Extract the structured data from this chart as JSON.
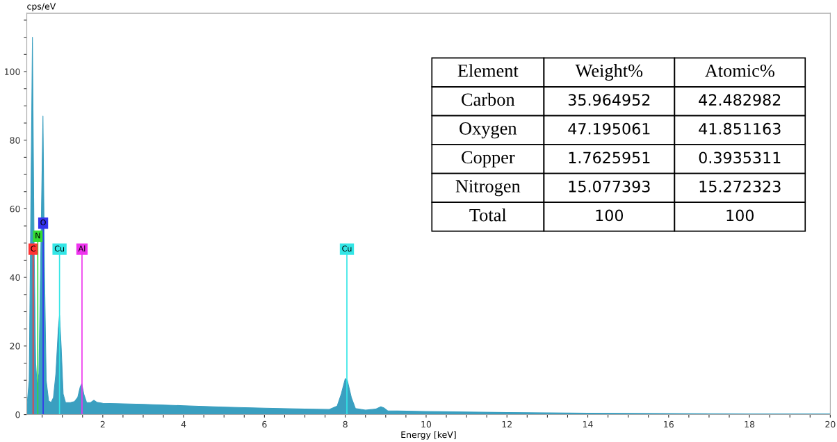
{
  "chart_data": [
    {
      "type": "area",
      "ylabel": "cps/eV",
      "xlabel": "Energy [keV]",
      "color": "#3a9fc0",
      "x": [
        0.12,
        0.18,
        0.22,
        0.26,
        0.3,
        0.34,
        0.38,
        0.42,
        0.47,
        0.52,
        0.56,
        0.6,
        0.66,
        0.72,
        0.78,
        0.84,
        0.9,
        0.93,
        0.97,
        1.02,
        1.08,
        1.2,
        1.3,
        1.38,
        1.44,
        1.48,
        1.53,
        1.6,
        1.7,
        1.78,
        1.85,
        2.0,
        3.0,
        4.0,
        5.0,
        6.0,
        7.0,
        7.6,
        7.8,
        7.9,
        8.0,
        8.05,
        8.15,
        8.25,
        8.5,
        8.75,
        8.88,
        8.95,
        9.05,
        10,
        12,
        14,
        16,
        18,
        20
      ],
      "values": [
        2,
        10,
        60,
        110,
        50,
        15,
        8,
        12,
        50,
        87,
        40,
        10,
        4,
        3.5,
        5,
        12,
        25,
        29,
        20,
        6,
        3.5,
        3.5,
        3.8,
        5,
        8,
        9,
        6,
        3.5,
        3.5,
        4.2,
        3.6,
        3.3,
        3.0,
        2.6,
        2.2,
        1.9,
        1.6,
        1.5,
        2.5,
        6,
        10.5,
        10,
        5,
        1.8,
        1.3,
        1.6,
        2.3,
        2,
        1.1,
        0.9,
        0.6,
        0.4,
        0.3,
        0.2,
        0.2
      ],
      "xlim": [
        0.12,
        20
      ],
      "ylim": [
        0,
        117
      ],
      "xticks": [
        {
          "value": 0.5,
          "label": null
        },
        {
          "value": 1,
          "label": null
        },
        {
          "value": 1.5,
          "label": null
        },
        2,
        {
          "value": 2.5,
          "label": null
        },
        {
          "value": 3,
          "label": null
        },
        {
          "value": 3.5,
          "label": null
        },
        4,
        {
          "value": 4.5,
          "label": null
        },
        {
          "value": 5,
          "label": null
        },
        {
          "value": 5.5,
          "label": null
        },
        6,
        {
          "value": 6.5,
          "label": null
        },
        {
          "value": 7,
          "label": null
        },
        {
          "value": 7.5,
          "label": null
        },
        8,
        {
          "value": 8.5,
          "label": null
        },
        {
          "value": 9,
          "label": null
        },
        {
          "value": 9.5,
          "label": null
        },
        10,
        {
          "value": 10.5,
          "label": null
        },
        {
          "value": 11,
          "label": null
        },
        {
          "value": 11.5,
          "label": null
        },
        12,
        {
          "value": 12.5,
          "label": null
        },
        {
          "value": 13,
          "label": null
        },
        {
          "value": 13.5,
          "label": null
        },
        14,
        {
          "value": 14.5,
          "label": null
        },
        {
          "value": 15,
          "label": null
        },
        {
          "value": 15.5,
          "label": null
        },
        16,
        {
          "value": 16.5,
          "label": null
        },
        {
          "value": 17,
          "label": null
        },
        {
          "value": 17.5,
          "label": null
        },
        18,
        {
          "value": 18.5,
          "label": null
        },
        {
          "value": 19,
          "label": null
        },
        {
          "value": 19.5,
          "label": null
        },
        20
      ],
      "yticks": [
        0,
        {
          "value": 5,
          "label": null
        },
        {
          "value": 10,
          "label": null
        },
        {
          "value": 15,
          "label": null
        },
        20,
        {
          "value": 25,
          "label": null
        },
        {
          "value": 30,
          "label": null
        },
        {
          "value": 35,
          "label": null
        },
        40,
        {
          "value": 45,
          "label": null
        },
        {
          "value": 50,
          "label": null
        },
        {
          "value": 55,
          "label": null
        },
        60,
        {
          "value": 65,
          "label": null
        },
        {
          "value": 70,
          "label": null
        },
        {
          "value": 75,
          "label": null
        },
        80,
        {
          "value": 85,
          "label": null
        },
        {
          "value": 90,
          "label": null
        },
        {
          "value": 95,
          "label": null
        },
        100,
        {
          "value": 105,
          "label": null
        },
        {
          "value": 110,
          "label": null
        },
        {
          "value": 115,
          "label": null
        }
      ],
      "grid": false,
      "ref_lines": [
        {
          "axis": "x",
          "value": 0.277,
          "label": "C",
          "color": "#ff3333"
        },
        {
          "axis": "x",
          "value": 0.392,
          "label": "N",
          "color": "#33dd33"
        },
        {
          "axis": "x",
          "value": 0.525,
          "label": "O",
          "color": "#3333ee"
        },
        {
          "axis": "x",
          "value": 0.93,
          "label": "Cu",
          "color": "#33e6e6"
        },
        {
          "axis": "x",
          "value": 1.486,
          "label": "Al",
          "color": "#ee33ee"
        },
        {
          "axis": "x",
          "value": 8.04,
          "label": "Cu",
          "color": "#33e6e6"
        }
      ]
    },
    {
      "type": "other",
      "categories": [
        "Element",
        "Weight%",
        "Atomic%"
      ],
      "annotations": [
        "Carbon",
        "35.964952",
        "42.482982",
        "Oxygen",
        "47.195061",
        "41.851163",
        "Copper",
        "1.7625951",
        "0.3935311",
        "Nitrogen",
        "15.077393",
        "15.272323",
        "Total",
        "100",
        "100"
      ]
    }
  ]
}
